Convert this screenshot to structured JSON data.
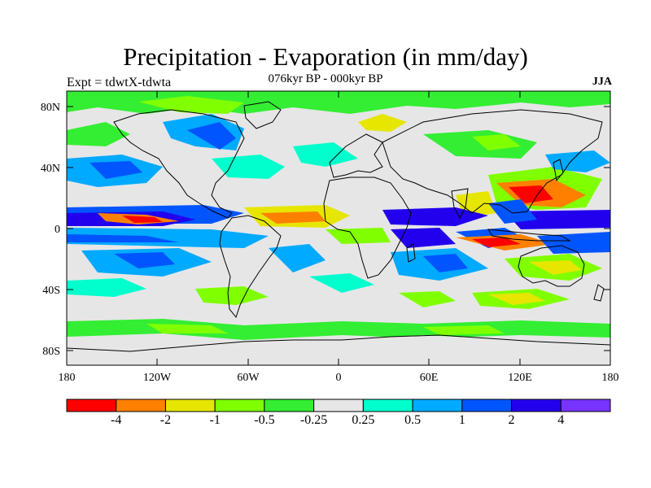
{
  "title": "Precipitation - Evaporation (in mm/day)",
  "subtitle": "076kyr BP - 000kyr BP",
  "expt": "Expt = tdwtX-tdwta",
  "season": "JJA",
  "axes": {
    "lat_labels": [
      "80N",
      "40N",
      "0",
      "40S",
      "80S"
    ],
    "lon_labels": [
      "180",
      "120W",
      "60W",
      "0",
      "60E",
      "120E",
      "180"
    ]
  },
  "colorbar": {
    "colors": [
      "#ff0000",
      "#ff8000",
      "#e6e600",
      "#80ff00",
      "#33ee33",
      "#e6e6e6",
      "#00ffcc",
      "#00aaff",
      "#0055ff",
      "#2200ee",
      "#7733ff"
    ],
    "labels": [
      "-4",
      "-2",
      "-1",
      "-0.5",
      "-0.25",
      "0.25",
      "0.5",
      "1",
      "2",
      "4"
    ]
  }
}
